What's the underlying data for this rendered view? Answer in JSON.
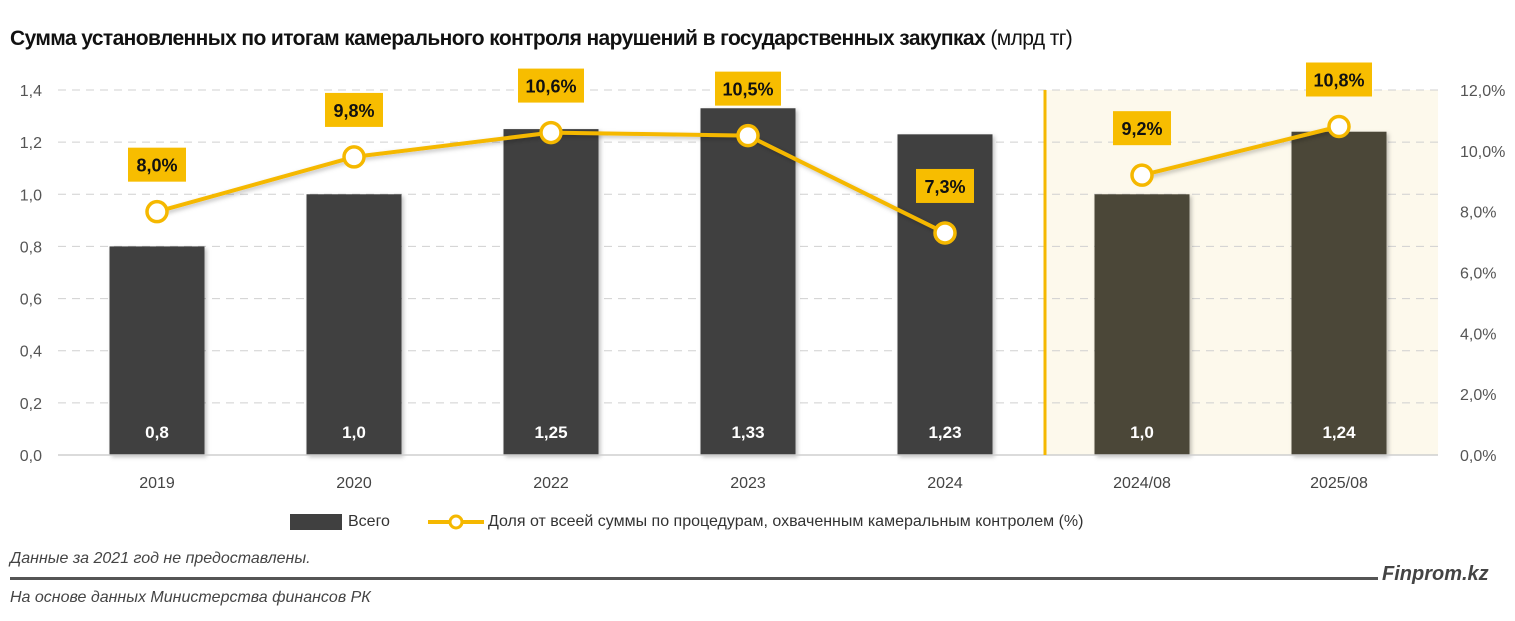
{
  "title": {
    "main": "Сумма установленных по итогам камерального контроля нарушений в государственных закупках",
    "unit": "(млрд тг)"
  },
  "footer": {
    "note": "Данные за 2021 год не предоставлены.",
    "source": "На основе данных Министерства финансов РК",
    "brand": "Finprom.kz"
  },
  "colors": {
    "bar": "#404040",
    "bar_highlight": "#4b4739",
    "line": "#f5b800",
    "label_bg": "#f7bd00",
    "highlight_bg": "#fdf9ec",
    "grid": "#d0d0d0"
  },
  "chart_data": {
    "type": "bar",
    "title": "Сумма установленных по итогам камерального контроля нарушений в государственных закупках (млрд тг)",
    "categories": [
      "2019",
      "2020",
      "2022",
      "2023",
      "2024",
      "2024/08",
      "2025/08"
    ],
    "highlighted_categories": [
      "2024/08",
      "2025/08"
    ],
    "series": [
      {
        "name": "Всего",
        "type": "bar",
        "axis": "left",
        "values": [
          0.8,
          1.0,
          1.25,
          1.33,
          1.23,
          1.0,
          1.24
        ],
        "labels": [
          "0,8",
          "1,0",
          "1,25",
          "1,33",
          "1,23",
          "1,0",
          "1,24"
        ]
      },
      {
        "name": "Доля от всеей суммы по процедурам, охваченным камеральным контролем (%)",
        "type": "line",
        "axis": "right",
        "values": [
          8.0,
          9.8,
          10.6,
          10.5,
          7.3,
          9.2,
          10.8
        ],
        "labels": [
          "8,0%",
          "9,8%",
          "10,6%",
          "10,5%",
          "7,3%",
          "9,2%",
          "10,8%"
        ],
        "segments": [
          [
            0,
            4
          ],
          [
            5,
            6
          ]
        ]
      }
    ],
    "y_left": {
      "min": 0,
      "max": 1.4,
      "ticks": [
        "0,0",
        "0,2",
        "0,4",
        "0,6",
        "0,8",
        "1,0",
        "1,2",
        "1,4"
      ]
    },
    "y_right": {
      "min": 0,
      "max": 12,
      "ticks": [
        "0,0%",
        "2,0%",
        "4,0%",
        "6,0%",
        "8,0%",
        "10,0%",
        "12,0%"
      ]
    },
    "xlabel": "",
    "ylabel": "",
    "grid": true,
    "legend_position": "bottom"
  }
}
